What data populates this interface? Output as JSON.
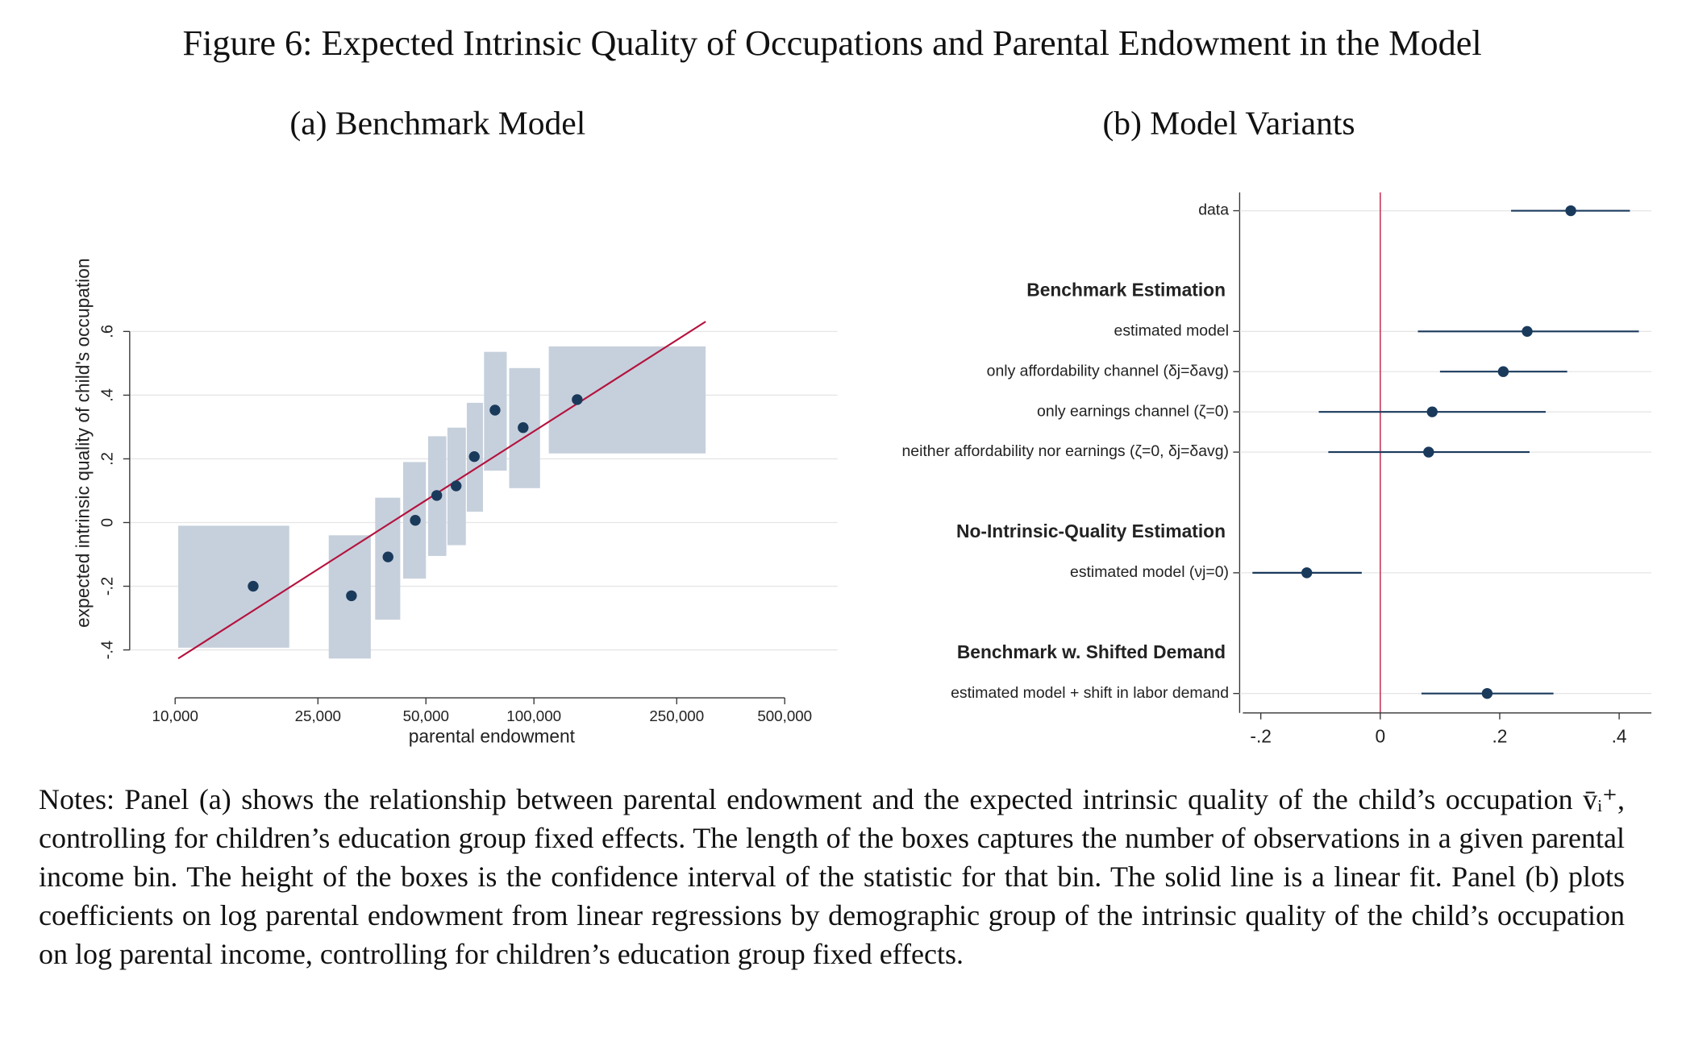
{
  "title": "Figure 6: Expected Intrinsic Quality of Occupations and Parental Endowment in the Model",
  "notes": "Notes: Panel (a) shows the relationship between parental endowment and the expected intrinsic quality of the child’s occupation v̄ᵢ⁺, controlling for children’s education group fixed effects. The length of the boxes captures the number of observations in a given parental income bin. The height of the boxes is the confidence interval of the statistic for that bin. The solid line is a linear fit. Panel (b) plots coefficients on log parental endowment from linear regressions by demographic group of the intrinsic quality of the child’s occupation on log parental income, controlling for children’s education group fixed effects.",
  "chart_data": [
    {
      "type": "boxscatter",
      "title": "(a) Benchmark Model",
      "x_label": "parental endowment",
      "y_label": "expected intrinsic quality of child's occupation",
      "xscale": "log",
      "grid": true,
      "xlim": [
        7470,
        702000
      ],
      "xticks": [
        {
          "value": 10000,
          "label": "10,000"
        },
        {
          "value": 25000,
          "label": "25,000"
        },
        {
          "value": 50000,
          "label": "50,000"
        },
        {
          "value": 100000,
          "label": "100,000"
        },
        {
          "value": 250000,
          "label": "250,000"
        },
        {
          "value": 500000,
          "label": "500,000"
        }
      ],
      "ylim": [
        -0.53,
        0.64
      ],
      "yticks": [
        {
          "value": -0.4,
          "label": "-.4"
        },
        {
          "value": -0.2,
          "label": "-.2"
        },
        0,
        {
          "value": 0.2,
          "label": ".2"
        },
        {
          "value": 0.4,
          "label": ".4"
        },
        {
          "value": 0.6,
          "label": ".6"
        }
      ],
      "x": [
        16500,
        31000,
        39200,
        46700,
        53600,
        60700,
        68200,
        77900,
        93300,
        132000
      ],
      "values": [
        -0.2,
        -0.23,
        -0.108,
        0.007,
        0.085,
        0.115,
        0.207,
        0.353,
        0.298,
        0.386
      ],
      "box_x_low": [
        10200,
        26800,
        36100,
        43200,
        50700,
        57400,
        65000,
        72600,
        85300,
        110000
      ],
      "box_x_high": [
        20800,
        35100,
        42400,
        50000,
        57000,
        64600,
        72100,
        84000,
        104000,
        301000
      ],
      "box_y_low": [
        -0.393,
        -0.427,
        -0.305,
        -0.176,
        -0.105,
        -0.071,
        0.034,
        0.163,
        0.108,
        0.217
      ],
      "box_y_high": [
        -0.01,
        -0.04,
        0.078,
        0.19,
        0.271,
        0.298,
        0.376,
        0.536,
        0.485,
        0.553
      ],
      "fit_x": [
        10200,
        301000
      ],
      "fit_y": [
        -0.427,
        0.631
      ],
      "color": "#1a3a5c",
      "box_color": "#c6d0dc",
      "fit_color": "#b5123e"
    },
    {
      "type": "coefplot",
      "title": "(b) Model Variants",
      "grid": true,
      "xlim": [
        -0.23,
        0.454
      ],
      "xticks": [
        {
          "value": -0.2,
          "label": "-.2"
        },
        0,
        {
          "value": 0.2,
          "label": ".2"
        },
        {
          "value": 0.4,
          "label": ".4"
        }
      ],
      "refline": 0,
      "refline_color": "#c8385a",
      "categories": [
        "data",
        null,
        "Benchmark Estimation",
        "estimated model",
        "only affordability channel (δj=δavg)",
        "only earnings channel (ζ=0)",
        "neither affordability nor earnings (ζ=0, δj=δavg)",
        null,
        "No-Intrinsic-Quality Estimation",
        "estimated model (νj=0)",
        null,
        "Benchmark w. Shifted Demand",
        "estimated model + shift in labor demand"
      ],
      "bold": [
        false,
        false,
        true,
        false,
        false,
        false,
        false,
        false,
        true,
        false,
        false,
        true,
        false
      ],
      "values": [
        0.319,
        null,
        null,
        0.246,
        0.206,
        0.087,
        0.081,
        null,
        null,
        -0.123,
        null,
        null,
        0.179
      ],
      "ci_low": [
        0.219,
        null,
        null,
        0.063,
        0.1,
        -0.103,
        -0.087,
        null,
        null,
        -0.214,
        null,
        null,
        0.069
      ],
      "ci_high": [
        0.418,
        null,
        null,
        0.433,
        0.313,
        0.277,
        0.25,
        null,
        null,
        -0.031,
        null,
        null,
        0.29
      ],
      "color": "#1a3a5c"
    }
  ]
}
